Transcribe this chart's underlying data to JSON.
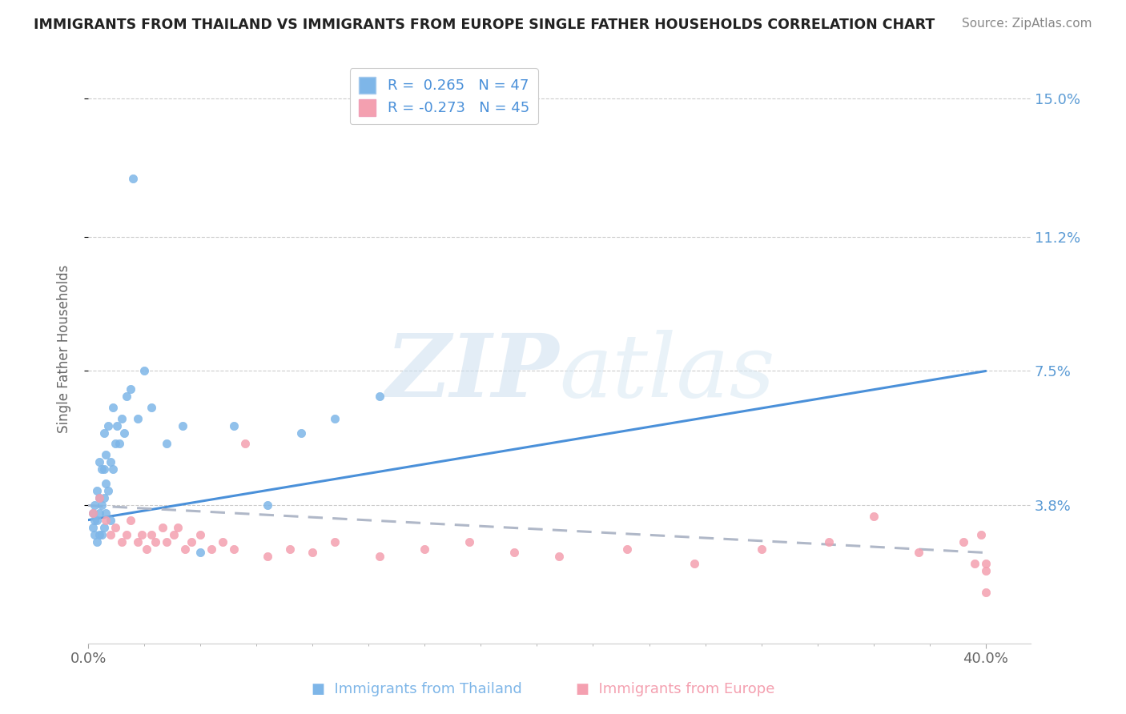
{
  "title": "IMMIGRANTS FROM THAILAND VS IMMIGRANTS FROM EUROPE SINGLE FATHER HOUSEHOLDS CORRELATION CHART",
  "source": "Source: ZipAtlas.com",
  "ylabel": "Single Father Households",
  "ytick_labels": [
    "3.8%",
    "7.5%",
    "11.2%",
    "15.0%"
  ],
  "ytick_values": [
    0.038,
    0.075,
    0.112,
    0.15
  ],
  "ylim": [
    0.0,
    0.162
  ],
  "xlim": [
    0.0,
    0.42
  ],
  "r_thailand": 0.265,
  "n_thailand": 47,
  "r_europe": -0.273,
  "n_europe": 45,
  "color_thailand": "#7EB6E8",
  "color_europe": "#F4A0B0",
  "color_trend_thailand": "#4A90D9",
  "color_trend_europe": "#B0B8C8",
  "color_ytick": "#5B9BD5",
  "trend_th_y0": 0.034,
  "trend_th_y1": 0.075,
  "trend_eu_y0": 0.038,
  "trend_eu_y1": 0.025,
  "thailand_x": [
    0.002,
    0.002,
    0.003,
    0.003,
    0.003,
    0.004,
    0.004,
    0.004,
    0.005,
    0.005,
    0.005,
    0.005,
    0.006,
    0.006,
    0.006,
    0.007,
    0.007,
    0.007,
    0.007,
    0.008,
    0.008,
    0.008,
    0.009,
    0.009,
    0.01,
    0.01,
    0.011,
    0.011,
    0.012,
    0.013,
    0.014,
    0.015,
    0.016,
    0.017,
    0.019,
    0.02,
    0.022,
    0.025,
    0.028,
    0.035,
    0.042,
    0.05,
    0.065,
    0.08,
    0.095,
    0.11,
    0.13
  ],
  "thailand_y": [
    0.032,
    0.036,
    0.03,
    0.034,
    0.038,
    0.028,
    0.034,
    0.042,
    0.03,
    0.036,
    0.04,
    0.05,
    0.03,
    0.038,
    0.048,
    0.032,
    0.04,
    0.048,
    0.058,
    0.036,
    0.044,
    0.052,
    0.042,
    0.06,
    0.034,
    0.05,
    0.048,
    0.065,
    0.055,
    0.06,
    0.055,
    0.062,
    0.058,
    0.068,
    0.07,
    0.128,
    0.062,
    0.075,
    0.065,
    0.055,
    0.06,
    0.025,
    0.06,
    0.038,
    0.058,
    0.062,
    0.068
  ],
  "europe_x": [
    0.002,
    0.005,
    0.008,
    0.01,
    0.012,
    0.015,
    0.017,
    0.019,
    0.022,
    0.024,
    0.026,
    0.028,
    0.03,
    0.033,
    0.035,
    0.038,
    0.04,
    0.043,
    0.046,
    0.05,
    0.055,
    0.06,
    0.065,
    0.07,
    0.08,
    0.09,
    0.1,
    0.11,
    0.13,
    0.15,
    0.17,
    0.19,
    0.21,
    0.24,
    0.27,
    0.3,
    0.33,
    0.35,
    0.37,
    0.39,
    0.395,
    0.398,
    0.4,
    0.4,
    0.4
  ],
  "europe_y": [
    0.036,
    0.04,
    0.034,
    0.03,
    0.032,
    0.028,
    0.03,
    0.034,
    0.028,
    0.03,
    0.026,
    0.03,
    0.028,
    0.032,
    0.028,
    0.03,
    0.032,
    0.026,
    0.028,
    0.03,
    0.026,
    0.028,
    0.026,
    0.055,
    0.024,
    0.026,
    0.025,
    0.028,
    0.024,
    0.026,
    0.028,
    0.025,
    0.024,
    0.026,
    0.022,
    0.026,
    0.028,
    0.035,
    0.025,
    0.028,
    0.022,
    0.03,
    0.02,
    0.014,
    0.022
  ]
}
